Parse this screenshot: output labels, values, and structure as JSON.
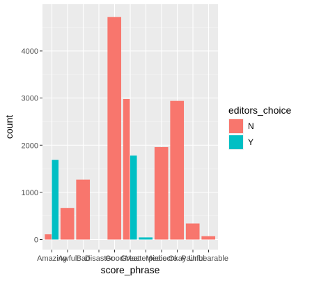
{
  "chart_data": {
    "type": "bar",
    "position": "dodge",
    "xlabel": "score_phrase",
    "ylabel": "count",
    "ylim": [
      0,
      4900
    ],
    "y_ticks": [
      0,
      1000,
      2000,
      3000,
      4000
    ],
    "grid": true,
    "legend_placement": "right",
    "categories": [
      "Amazing",
      "Awful",
      "Bad",
      "Disaster",
      "Good",
      "Great",
      "Masterpiece",
      "Mediocre",
      "Okay",
      "Painful",
      "Unbearable"
    ],
    "series": [
      {
        "name": "N",
        "color": "#F8766D",
        "values": [
          110,
          670,
          1270,
          0,
          4720,
          2980,
          0,
          1960,
          2940,
          340,
          70
        ]
      },
      {
        "name": "Y",
        "color": "#00BFC4",
        "values": [
          1690,
          0,
          0,
          0,
          0,
          1780,
          45,
          0,
          0,
          0,
          0
        ]
      }
    ],
    "legend": {
      "title": "editors_choice",
      "entries": [
        "N",
        "Y"
      ]
    }
  }
}
